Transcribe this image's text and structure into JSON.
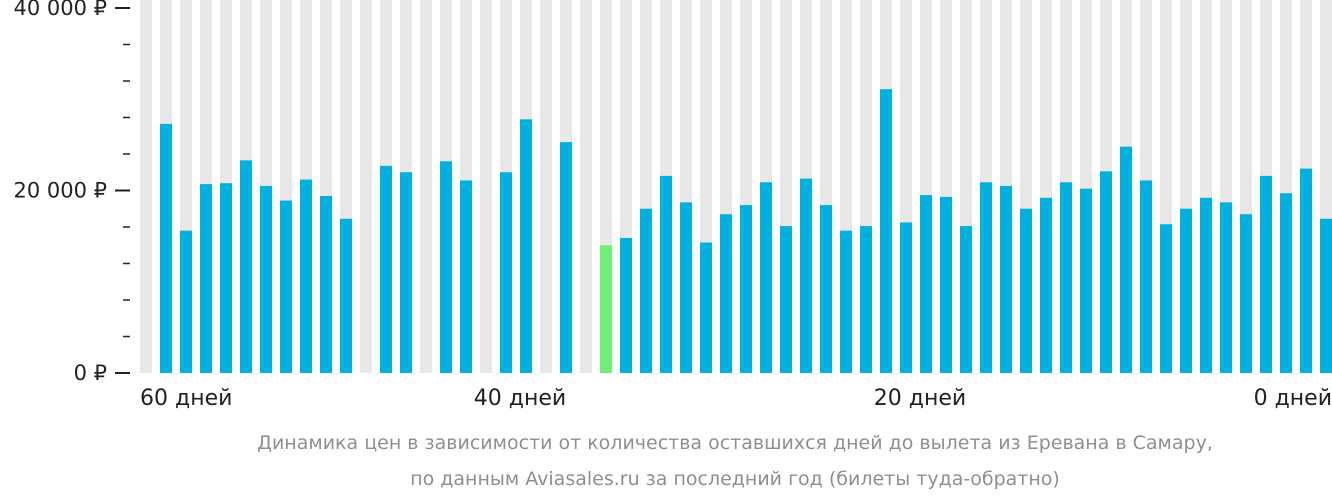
{
  "chart_data": {
    "type": "bar",
    "x_axis": "days before departure",
    "x_ticks": [
      "60 дней",
      "40 дней",
      "20 дней",
      "0 дней"
    ],
    "y_ticks": [
      "0 ₽",
      "20 000 ₽",
      "40 000 ₽"
    ],
    "ylim": [
      0,
      40000
    ],
    "title": "",
    "xlabel": "",
    "ylabel": "",
    "categories": [
      60,
      59,
      58,
      57,
      56,
      55,
      54,
      53,
      52,
      51,
      50,
      49,
      48,
      47,
      46,
      45,
      44,
      43,
      42,
      41,
      40,
      39,
      38,
      37,
      36,
      35,
      34,
      33,
      32,
      31,
      30,
      29,
      28,
      27,
      26,
      25,
      24,
      23,
      22,
      21,
      20,
      19,
      18,
      17,
      16,
      15,
      14,
      13,
      12,
      11,
      10,
      9,
      8,
      7,
      6,
      5,
      4,
      3,
      2,
      1,
      0
    ],
    "values": [
      27300,
      15600,
      20700,
      20800,
      23300,
      20500,
      18900,
      21200,
      19400,
      16900,
      null,
      22700,
      22000,
      null,
      23200,
      21100,
      null,
      22000,
      27800,
      null,
      25300,
      null,
      14000,
      14800,
      18000,
      21600,
      18700,
      14300,
      17400,
      18400,
      20900,
      16100,
      21300,
      18400,
      15600,
      16100,
      31100,
      16500,
      19500,
      19300,
      16100,
      20900,
      20500,
      18000,
      19200,
      20900,
      20200,
      22100,
      24800,
      21100,
      16300,
      18000,
      19200,
      18700,
      17400,
      21600,
      19700,
      22400,
      16900,
      null,
      null
    ],
    "highlight_index": 22,
    "grid": true,
    "legend": "none"
  },
  "colors": {
    "bar": "#00b0de",
    "highlight": "#6cf07a",
    "column_bg": "#e8e8e8",
    "axis_text": "#222222",
    "caption_text": "#8f8f8f"
  },
  "caption": {
    "line1": "Динамика цен в зависимости от количества оставшихся дней до вылета из Еревана в Самару,",
    "line2": "по данным Aviasales.ru за последний год (билеты туда-обратно)"
  }
}
